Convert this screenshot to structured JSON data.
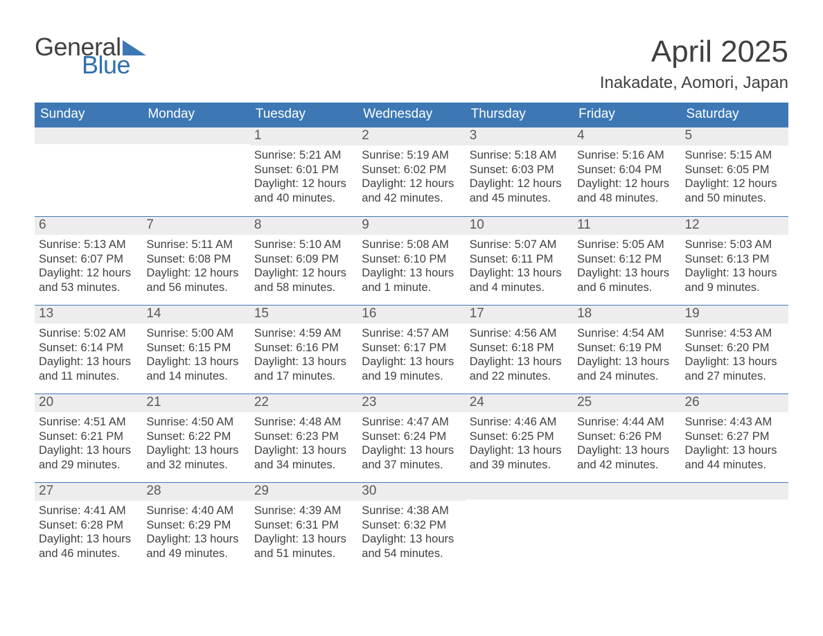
{
  "logo": {
    "word1": "General",
    "word2": "Blue",
    "tri_color": "#3d78b5"
  },
  "title": "April 2025",
  "subtitle": "Inakadate, Aomori, Japan",
  "colors": {
    "header_bg": "#3d78b5",
    "header_text": "#ffffff",
    "daynum_bg": "#ededed",
    "daynum_text": "#595959",
    "body_text": "#404040",
    "week_border": "#3d78b5",
    "page_bg": "#ffffff",
    "logo_blue": "#2f6fad"
  },
  "fonts": {
    "title_size_pt": 33,
    "subtitle_size_pt": 18,
    "dow_size_pt": 14,
    "daynum_size_pt": 14,
    "body_size_pt": 12
  },
  "days_of_week": [
    "Sunday",
    "Monday",
    "Tuesday",
    "Wednesday",
    "Thursday",
    "Friday",
    "Saturday"
  ],
  "weeks": [
    [
      {
        "n": "",
        "sunrise": "",
        "sunset": "",
        "daylight": ""
      },
      {
        "n": "",
        "sunrise": "",
        "sunset": "",
        "daylight": ""
      },
      {
        "n": "1",
        "sunrise": "Sunrise: 5:21 AM",
        "sunset": "Sunset: 6:01 PM",
        "daylight": "Daylight: 12 hours and 40 minutes."
      },
      {
        "n": "2",
        "sunrise": "Sunrise: 5:19 AM",
        "sunset": "Sunset: 6:02 PM",
        "daylight": "Daylight: 12 hours and 42 minutes."
      },
      {
        "n": "3",
        "sunrise": "Sunrise: 5:18 AM",
        "sunset": "Sunset: 6:03 PM",
        "daylight": "Daylight: 12 hours and 45 minutes."
      },
      {
        "n": "4",
        "sunrise": "Sunrise: 5:16 AM",
        "sunset": "Sunset: 6:04 PM",
        "daylight": "Daylight: 12 hours and 48 minutes."
      },
      {
        "n": "5",
        "sunrise": "Sunrise: 5:15 AM",
        "sunset": "Sunset: 6:05 PM",
        "daylight": "Daylight: 12 hours and 50 minutes."
      }
    ],
    [
      {
        "n": "6",
        "sunrise": "Sunrise: 5:13 AM",
        "sunset": "Sunset: 6:07 PM",
        "daylight": "Daylight: 12 hours and 53 minutes."
      },
      {
        "n": "7",
        "sunrise": "Sunrise: 5:11 AM",
        "sunset": "Sunset: 6:08 PM",
        "daylight": "Daylight: 12 hours and 56 minutes."
      },
      {
        "n": "8",
        "sunrise": "Sunrise: 5:10 AM",
        "sunset": "Sunset: 6:09 PM",
        "daylight": "Daylight: 12 hours and 58 minutes."
      },
      {
        "n": "9",
        "sunrise": "Sunrise: 5:08 AM",
        "sunset": "Sunset: 6:10 PM",
        "daylight": "Daylight: 13 hours and 1 minute."
      },
      {
        "n": "10",
        "sunrise": "Sunrise: 5:07 AM",
        "sunset": "Sunset: 6:11 PM",
        "daylight": "Daylight: 13 hours and 4 minutes."
      },
      {
        "n": "11",
        "sunrise": "Sunrise: 5:05 AM",
        "sunset": "Sunset: 6:12 PM",
        "daylight": "Daylight: 13 hours and 6 minutes."
      },
      {
        "n": "12",
        "sunrise": "Sunrise: 5:03 AM",
        "sunset": "Sunset: 6:13 PM",
        "daylight": "Daylight: 13 hours and 9 minutes."
      }
    ],
    [
      {
        "n": "13",
        "sunrise": "Sunrise: 5:02 AM",
        "sunset": "Sunset: 6:14 PM",
        "daylight": "Daylight: 13 hours and 11 minutes."
      },
      {
        "n": "14",
        "sunrise": "Sunrise: 5:00 AM",
        "sunset": "Sunset: 6:15 PM",
        "daylight": "Daylight: 13 hours and 14 minutes."
      },
      {
        "n": "15",
        "sunrise": "Sunrise: 4:59 AM",
        "sunset": "Sunset: 6:16 PM",
        "daylight": "Daylight: 13 hours and 17 minutes."
      },
      {
        "n": "16",
        "sunrise": "Sunrise: 4:57 AM",
        "sunset": "Sunset: 6:17 PM",
        "daylight": "Daylight: 13 hours and 19 minutes."
      },
      {
        "n": "17",
        "sunrise": "Sunrise: 4:56 AM",
        "sunset": "Sunset: 6:18 PM",
        "daylight": "Daylight: 13 hours and 22 minutes."
      },
      {
        "n": "18",
        "sunrise": "Sunrise: 4:54 AM",
        "sunset": "Sunset: 6:19 PM",
        "daylight": "Daylight: 13 hours and 24 minutes."
      },
      {
        "n": "19",
        "sunrise": "Sunrise: 4:53 AM",
        "sunset": "Sunset: 6:20 PM",
        "daylight": "Daylight: 13 hours and 27 minutes."
      }
    ],
    [
      {
        "n": "20",
        "sunrise": "Sunrise: 4:51 AM",
        "sunset": "Sunset: 6:21 PM",
        "daylight": "Daylight: 13 hours and 29 minutes."
      },
      {
        "n": "21",
        "sunrise": "Sunrise: 4:50 AM",
        "sunset": "Sunset: 6:22 PM",
        "daylight": "Daylight: 13 hours and 32 minutes."
      },
      {
        "n": "22",
        "sunrise": "Sunrise: 4:48 AM",
        "sunset": "Sunset: 6:23 PM",
        "daylight": "Daylight: 13 hours and 34 minutes."
      },
      {
        "n": "23",
        "sunrise": "Sunrise: 4:47 AM",
        "sunset": "Sunset: 6:24 PM",
        "daylight": "Daylight: 13 hours and 37 minutes."
      },
      {
        "n": "24",
        "sunrise": "Sunrise: 4:46 AM",
        "sunset": "Sunset: 6:25 PM",
        "daylight": "Daylight: 13 hours and 39 minutes."
      },
      {
        "n": "25",
        "sunrise": "Sunrise: 4:44 AM",
        "sunset": "Sunset: 6:26 PM",
        "daylight": "Daylight: 13 hours and 42 minutes."
      },
      {
        "n": "26",
        "sunrise": "Sunrise: 4:43 AM",
        "sunset": "Sunset: 6:27 PM",
        "daylight": "Daylight: 13 hours and 44 minutes."
      }
    ],
    [
      {
        "n": "27",
        "sunrise": "Sunrise: 4:41 AM",
        "sunset": "Sunset: 6:28 PM",
        "daylight": "Daylight: 13 hours and 46 minutes."
      },
      {
        "n": "28",
        "sunrise": "Sunrise: 4:40 AM",
        "sunset": "Sunset: 6:29 PM",
        "daylight": "Daylight: 13 hours and 49 minutes."
      },
      {
        "n": "29",
        "sunrise": "Sunrise: 4:39 AM",
        "sunset": "Sunset: 6:31 PM",
        "daylight": "Daylight: 13 hours and 51 minutes."
      },
      {
        "n": "30",
        "sunrise": "Sunrise: 4:38 AM",
        "sunset": "Sunset: 6:32 PM",
        "daylight": "Daylight: 13 hours and 54 minutes."
      },
      {
        "n": "",
        "sunrise": "",
        "sunset": "",
        "daylight": ""
      },
      {
        "n": "",
        "sunrise": "",
        "sunset": "",
        "daylight": ""
      },
      {
        "n": "",
        "sunrise": "",
        "sunset": "",
        "daylight": ""
      }
    ]
  ]
}
